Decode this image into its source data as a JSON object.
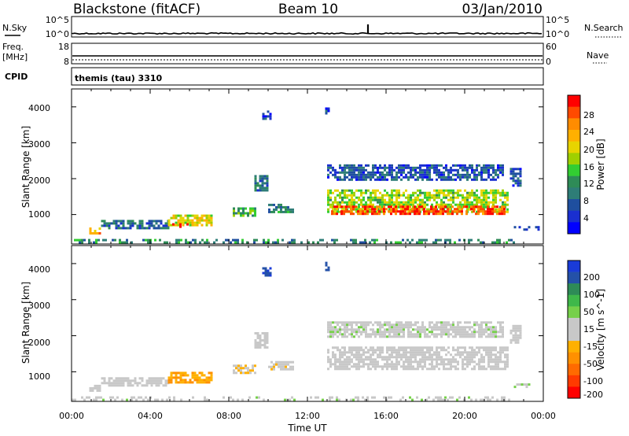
{
  "header": {
    "station": "Blackstone (fitACF)",
    "beam": "Beam 10",
    "date": "03/Jan/2010"
  },
  "strips": {
    "nsky_label": "N.Sky",
    "nsky_ticks": [
      "10^5",
      "10^0"
    ],
    "nsearch_label": "N.Search",
    "nsearch_ticks": [
      "10^5",
      "10^0"
    ],
    "freq_label": "Freq.",
    "freq_unit": "[MHz]",
    "freq_ticks": [
      "18",
      "8"
    ],
    "nave_label": "Nave",
    "nave_ticks": [
      "60",
      "0"
    ],
    "cpid_label": "CPID",
    "cpid_text": "themis (tau) 3310"
  },
  "power_panel": {
    "ylabel": "Slant Range [km]",
    "yticks": [
      "4000",
      "3000",
      "2000",
      "1000"
    ],
    "colorbar_label": "Power [dB]",
    "colorbar_ticks": [
      "28",
      "24",
      "20",
      "16",
      "12",
      "8",
      "4"
    ],
    "colorbar_colors": [
      "#ff0000",
      "#ff4a00",
      "#ff8c00",
      "#ffb000",
      "#e8d400",
      "#9fd000",
      "#32cd32",
      "#2e8b57",
      "#2e7d77",
      "#1f4f9f",
      "#1a2fd0",
      "#0000ff"
    ]
  },
  "velocity_panel": {
    "ylabel": "Slant Range [km]",
    "yticks": [
      "4000",
      "3000",
      "2000",
      "1000"
    ],
    "colorbar_label": "Velocity [m s^-1]",
    "colorbar_ticks": [
      "200",
      "100",
      "50",
      "15",
      "-15",
      "-50",
      "-100",
      "-200"
    ],
    "colorbar_colors": [
      "#1a3bd8",
      "#2451a8",
      "#2e8b57",
      "#3fb84a",
      "#76d04a",
      "#c8c8c8",
      "#c8c8c8",
      "#ffb000",
      "#ff9000",
      "#ff6a00",
      "#ff3a00",
      "#ff0000"
    ]
  },
  "xaxis": {
    "ticks": [
      "00:00",
      "04:00",
      "08:00",
      "12:00",
      "16:00",
      "20:00",
      "00:00"
    ],
    "label": "Time UT"
  },
  "chart_data": [
    {
      "type": "heatmap",
      "title": "Power",
      "xlabel": "Time UT",
      "ylabel": "Slant Range [km]",
      "xlim": [
        0,
        24
      ],
      "ylim": [
        180,
        4500
      ],
      "zlabel": "Power [dB]",
      "zlim": [
        0,
        30
      ],
      "regions": [
        {
          "t0": 0.9,
          "t1": 1.5,
          "r0": 480,
          "r1": 640,
          "z": 22
        },
        {
          "t0": 1.5,
          "t1": 4.9,
          "r0": 650,
          "r1": 850,
          "z": 8
        },
        {
          "t0": 4.9,
          "t1": 7.1,
          "r0": 700,
          "r1": 1000,
          "z": 18
        },
        {
          "t0": 5.0,
          "t1": 6.0,
          "r0": 640,
          "r1": 760,
          "z": 28
        },
        {
          "t0": 8.2,
          "t1": 9.3,
          "r0": 1000,
          "r1": 1200,
          "z": 12
        },
        {
          "t0": 9.3,
          "t1": 10.0,
          "r0": 1700,
          "r1": 2100,
          "z": 8
        },
        {
          "t0": 9.7,
          "t1": 10.1,
          "r0": 3700,
          "r1": 3900,
          "z": 6
        },
        {
          "t0": 10.0,
          "t1": 11.3,
          "r0": 1050,
          "r1": 1300,
          "z": 10
        },
        {
          "t0": 12.9,
          "t1": 13.1,
          "r0": 3800,
          "r1": 4050,
          "z": 6
        },
        {
          "t0": 13.0,
          "t1": 22.2,
          "r0": 1100,
          "r1": 1700,
          "z": 16
        },
        {
          "t0": 13.2,
          "t1": 22.0,
          "r0": 1000,
          "r1": 1250,
          "z": 26
        },
        {
          "t0": 13.0,
          "t1": 22.0,
          "r0": 1950,
          "r1": 2400,
          "z": 6
        },
        {
          "t0": 22.3,
          "t1": 22.8,
          "r0": 1800,
          "r1": 2300,
          "z": 6
        },
        {
          "t0": 22.5,
          "t1": 23.8,
          "r0": 550,
          "r1": 680,
          "z": 4
        },
        {
          "t0": 0.0,
          "t1": 22.5,
          "r0": 190,
          "r1": 320,
          "z": 10
        }
      ]
    },
    {
      "type": "heatmap",
      "title": "Velocity",
      "xlabel": "Time UT",
      "ylabel": "Slant Range [km]",
      "xlim": [
        0,
        24
      ],
      "ylim": [
        180,
        4500
      ],
      "zlabel": "Velocity [m s^-1]",
      "zlim": [
        -250,
        250
      ],
      "regions": [
        {
          "t0": 0.9,
          "t1": 1.5,
          "r0": 480,
          "r1": 640,
          "z": 0
        },
        {
          "t0": 1.5,
          "t1": 4.9,
          "r0": 650,
          "r1": 850,
          "z": 0
        },
        {
          "t0": 4.9,
          "t1": 7.1,
          "r0": 700,
          "r1": 1000,
          "z": -80
        },
        {
          "t0": 8.2,
          "t1": 9.3,
          "r0": 1000,
          "r1": 1200,
          "z": -40
        },
        {
          "t0": 9.3,
          "t1": 10.0,
          "r0": 1700,
          "r1": 2100,
          "z": 0
        },
        {
          "t0": 9.7,
          "t1": 10.1,
          "r0": 3700,
          "r1": 3900,
          "z": 200
        },
        {
          "t0": 10.0,
          "t1": 11.3,
          "r0": 1050,
          "r1": 1300,
          "z": -30
        },
        {
          "t0": 12.9,
          "t1": 13.1,
          "r0": 3800,
          "r1": 4050,
          "z": 200
        },
        {
          "t0": 13.0,
          "t1": 22.2,
          "r0": 1100,
          "r1": 1700,
          "z": 0
        },
        {
          "t0": 13.0,
          "t1": 22.0,
          "r0": 1950,
          "r1": 2400,
          "z": 30
        },
        {
          "t0": 22.3,
          "t1": 22.8,
          "r0": 1800,
          "r1": 2300,
          "z": -20
        },
        {
          "t0": 22.5,
          "t1": 23.8,
          "r0": 550,
          "r1": 680,
          "z": 40
        },
        {
          "t0": 0.0,
          "t1": 22.5,
          "r0": 190,
          "r1": 320,
          "z": 30
        }
      ]
    }
  ]
}
